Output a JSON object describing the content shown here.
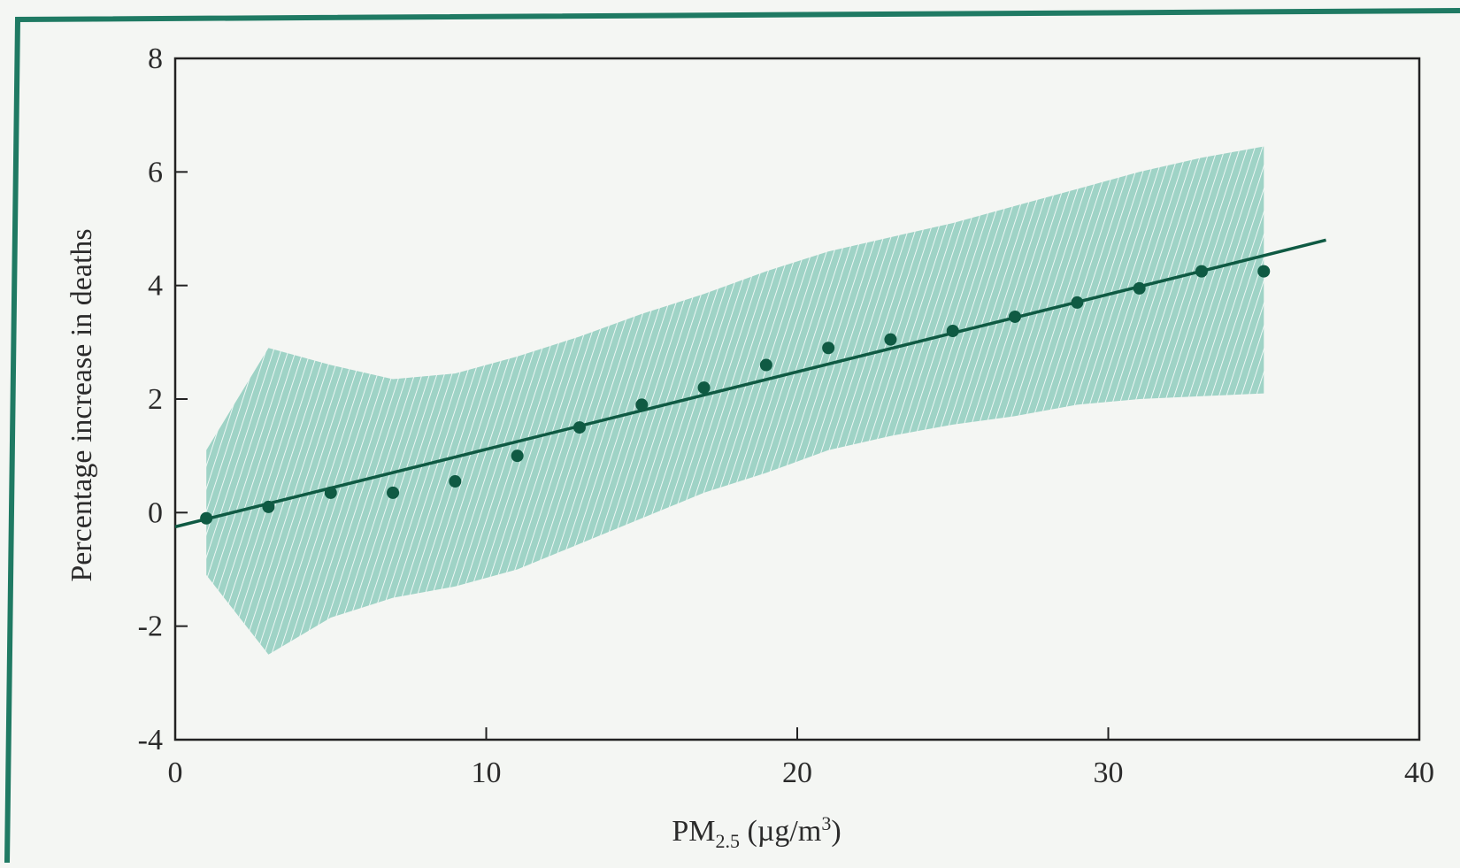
{
  "colors": {
    "frame_border": "#1f7a63",
    "band_fill": "#9fd3c6",
    "band_hatch": "#ffffff",
    "line": "#0f5a43",
    "points": "#0f5a43",
    "axis": "#222222",
    "background": "#f4f6f3"
  },
  "chart_data": {
    "type": "scatter",
    "title": "",
    "xlabel": "PM2.5 (µg/m³)",
    "xlabel_main": "PM",
    "xlabel_sub": "2.5",
    "xlabel_units": " (µg/m",
    "xlabel_sup": "3",
    "xlabel_close": ")",
    "ylabel": "Percentage increase in deaths",
    "xlim": [
      0,
      40
    ],
    "ylim": [
      -4,
      8
    ],
    "x_ticks": [
      0,
      10,
      20,
      30,
      40
    ],
    "x_tick_labels": [
      "0",
      "10",
      "20",
      "30",
      "40"
    ],
    "y_ticks": [
      -4,
      -2,
      0,
      2,
      4,
      6,
      8
    ],
    "y_tick_labels": [
      "-4",
      "-2",
      "0",
      "2",
      "4",
      "6",
      "8"
    ],
    "grid": false,
    "legend": "none",
    "points": {
      "x": [
        1,
        3,
        5,
        7,
        9,
        11,
        13,
        15,
        17,
        19,
        21,
        23,
        25,
        27,
        29,
        31,
        33,
        35
      ],
      "y": [
        -0.1,
        0.1,
        0.35,
        0.35,
        0.55,
        1.0,
        1.5,
        1.9,
        2.2,
        2.6,
        2.9,
        3.05,
        3.2,
        3.45,
        3.7,
        3.95,
        4.25,
        4.25
      ]
    },
    "fit_line": {
      "x": [
        0,
        37
      ],
      "y": [
        -0.25,
        4.8
      ]
    },
    "confidence_band": {
      "x": [
        1,
        3,
        5,
        7,
        9,
        11,
        13,
        15,
        17,
        19,
        21,
        23,
        25,
        27,
        29,
        31,
        33,
        35
      ],
      "upper": [
        1.1,
        2.9,
        2.6,
        2.35,
        2.45,
        2.75,
        3.1,
        3.5,
        3.85,
        4.25,
        4.6,
        4.85,
        5.1,
        5.4,
        5.7,
        6.0,
        6.25,
        6.45
      ],
      "lower": [
        -1.1,
        -2.5,
        -1.85,
        -1.5,
        -1.3,
        -1.0,
        -0.55,
        -0.1,
        0.35,
        0.7,
        1.1,
        1.35,
        1.55,
        1.7,
        1.9,
        2.0,
        2.05,
        2.1
      ]
    }
  }
}
